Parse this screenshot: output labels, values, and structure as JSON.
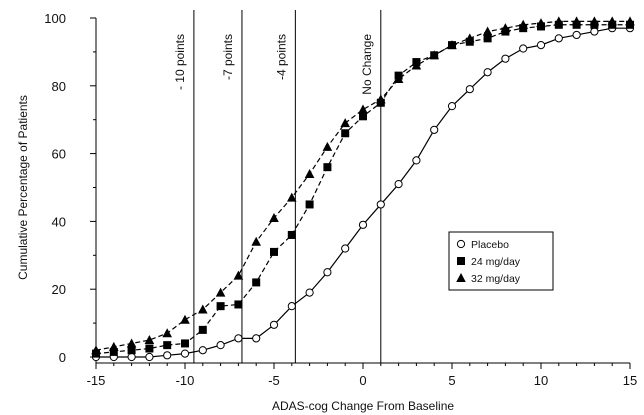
{
  "chart_data": {
    "type": "line",
    "title": "",
    "xlabel": "ADAS-cog Change From Baseline",
    "ylabel": "Cumulative  Percentage of Patients",
    "xlim": [
      -15,
      15
    ],
    "ylim": [
      0,
      100
    ],
    "x_ticks": [
      -15,
      -10,
      -5,
      0,
      5,
      10,
      15
    ],
    "y_ticks": [
      0,
      20,
      40,
      60,
      80,
      100
    ],
    "grid": false,
    "legend_position": "right",
    "reference_lines": [
      {
        "x": -9.5,
        "label": "- 10 points"
      },
      {
        "x": -6.8,
        "label": "-7 points"
      },
      {
        "x": -3.8,
        "label": "-4 points"
      },
      {
        "x": 1.0,
        "label": "No Change"
      }
    ],
    "series": [
      {
        "name": "Placebo",
        "marker": "open-circle",
        "line_style": "solid",
        "color": "#000000",
        "x": [
          -15,
          -14,
          -13,
          -12,
          -11,
          -10,
          -9,
          -8,
          -7,
          -6,
          -5,
          -4,
          -3,
          -2,
          -1,
          0,
          1,
          2,
          3,
          4,
          5,
          6,
          7,
          8,
          9,
          10,
          11,
          12,
          13,
          14,
          15
        ],
        "y": [
          0,
          0,
          0,
          0,
          0.5,
          1,
          2,
          3.5,
          5.5,
          5.5,
          9.5,
          15,
          19,
          25,
          32,
          39,
          45,
          51,
          58,
          67,
          74,
          79,
          84,
          88,
          91,
          92,
          94,
          95,
          96,
          97,
          97
        ]
      },
      {
        "name": "24 mg/day",
        "marker": "filled-square",
        "line_style": "dashed",
        "color": "#000000",
        "x": [
          -15,
          -14,
          -13,
          -12,
          -11,
          -10,
          -9,
          -8,
          -7,
          -6,
          -5,
          -4,
          -3,
          -2,
          -1,
          0,
          1,
          2,
          3,
          4,
          5,
          6,
          7,
          8,
          9,
          10,
          11,
          12,
          13,
          14,
          15
        ],
        "y": [
          1,
          1.5,
          2,
          2.5,
          3.5,
          4,
          8,
          15,
          15.5,
          22,
          31,
          36,
          45,
          56,
          66,
          71,
          75,
          83,
          87,
          89,
          92,
          93,
          94,
          96,
          97,
          97.5,
          98,
          98,
          98,
          98,
          98
        ]
      },
      {
        "name": "32 mg/day",
        "marker": "filled-triangle",
        "line_style": "dashed",
        "color": "#000000",
        "x": [
          -15,
          -14,
          -13,
          -12,
          -11,
          -10,
          -9,
          -8,
          -7,
          -6,
          -5,
          -4,
          -3,
          -2,
          -1,
          0,
          1,
          2,
          3,
          4,
          5,
          6,
          7,
          8,
          9,
          10,
          11,
          12,
          13,
          14,
          15
        ],
        "y": [
          2,
          3,
          4,
          5,
          7,
          11,
          14,
          19,
          24,
          34,
          41,
          47,
          54,
          62,
          69,
          73,
          76,
          82,
          86,
          89,
          92,
          94,
          96,
          97,
          98,
          98.5,
          99,
          99,
          99,
          99,
          99
        ]
      }
    ]
  }
}
